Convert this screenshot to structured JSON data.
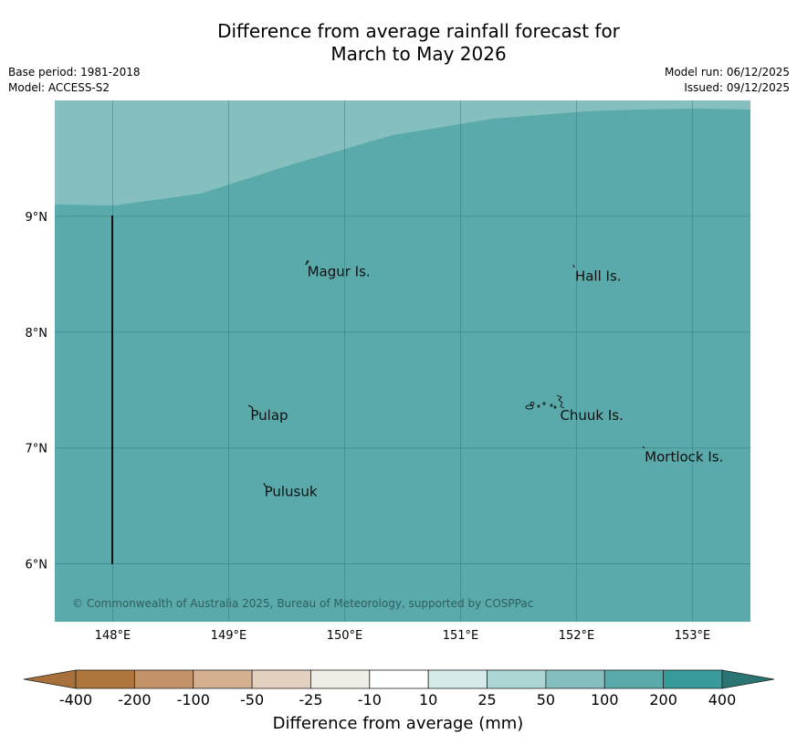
{
  "title": {
    "line1": "Difference from average rainfall forecast for",
    "line2": "March to May 2026"
  },
  "meta": {
    "base_period": "Base period: 1981-2018",
    "model": "Model: ACCESS-S2",
    "model_run": "Model run: 06/12/2025",
    "issued": "Issued: 09/12/2025"
  },
  "map": {
    "lon_range": [
      147.5,
      153.5
    ],
    "lat_range": [
      5.5,
      10.0
    ],
    "lon_ticks": [
      148,
      149,
      150,
      151,
      152,
      153
    ],
    "lon_tick_labels": [
      "148°E",
      "149°E",
      "150°E",
      "151°E",
      "152°E",
      "153°E"
    ],
    "lat_ticks": [
      9,
      8,
      7,
      6
    ],
    "lat_tick_labels": [
      "9°N",
      "8°N",
      "7°N",
      "6°N"
    ],
    "places": [
      {
        "name": "Magur Is.",
        "lon": 149.67,
        "lat": 8.57
      },
      {
        "name": "Hall Is.",
        "lon": 151.98,
        "lat": 8.53
      },
      {
        "name": "Pulap",
        "lon": 149.18,
        "lat": 7.33
      },
      {
        "name": "Chuuk Is.",
        "lon": 151.85,
        "lat": 7.33
      },
      {
        "name": "Mortlock Is.",
        "lon": 152.58,
        "lat": 6.97
      },
      {
        "name": "Pulusuk",
        "lon": 149.3,
        "lat": 6.67
      }
    ],
    "copyright": "© Commonwealth of Australia 2025, Bureau of Meteorology, supported by COSPPac",
    "colors": {
      "band_50_100": "#85c0bf",
      "band_100_200": "#5aaaab"
    }
  },
  "colorbar": {
    "title": "Difference from average (mm)",
    "labels": [
      "-400",
      "-200",
      "-100",
      "-50",
      "-25",
      "-10",
      "10",
      "25",
      "50",
      "100",
      "200",
      "400"
    ],
    "colors": [
      "#a8703a",
      "#af763c",
      "#c29269",
      "#d3b08f",
      "#e4d0bf",
      "#f0ece6",
      "#ffffff",
      "#d6ebea",
      "#acd5d4",
      "#84bfbe",
      "#5aaaab",
      "#379b9b",
      "#2a7473"
    ]
  }
}
